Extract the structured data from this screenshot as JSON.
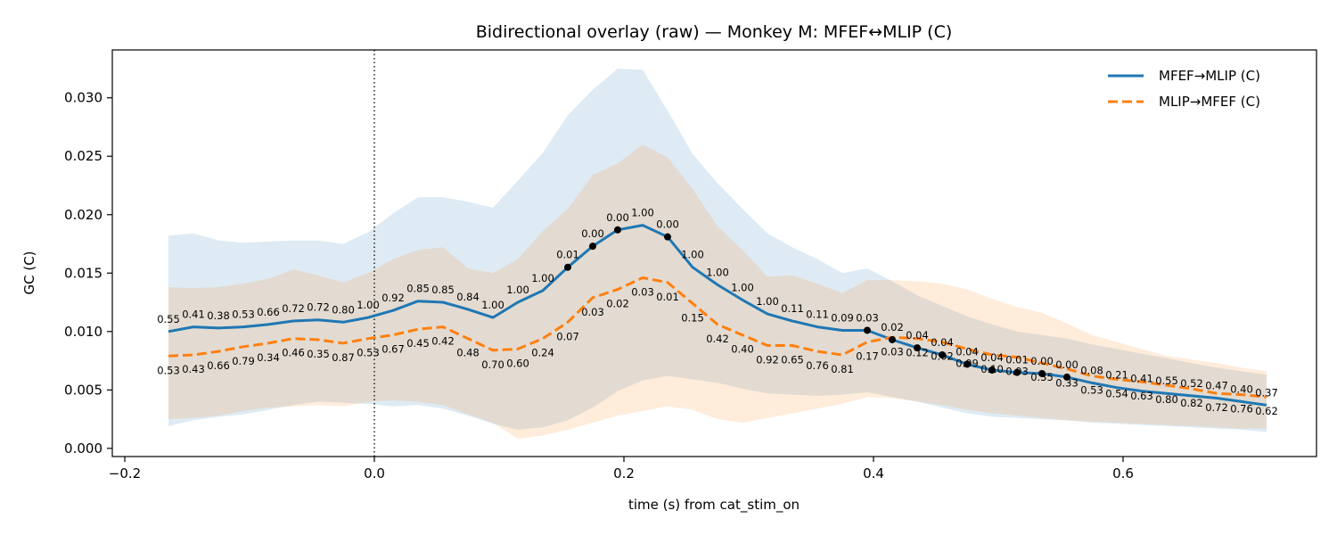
{
  "chart_data": {
    "type": "line",
    "title": "Bidirectional overlay (raw) — Monkey M: MFEF↔MLIP (C)",
    "xlabel": "time (s) from cat_stim_on",
    "ylabel": "GC (C)",
    "xlim": [
      -0.21,
      0.755
    ],
    "ylim": [
      -0.0007,
      0.0341
    ],
    "xticks": [
      -0.2,
      0.0,
      0.2,
      0.4,
      0.6
    ],
    "xtick_labels": [
      "−0.2",
      "0.0",
      "0.2",
      "0.4",
      "0.6"
    ],
    "yticks": [
      0.0,
      0.005,
      0.01,
      0.015,
      0.02,
      0.025,
      0.03
    ],
    "ytick_labels": [
      "0.000",
      "0.005",
      "0.010",
      "0.015",
      "0.020",
      "0.025",
      "0.030"
    ],
    "grid": false,
    "legend_position": "top-right",
    "vline_x": 0.0,
    "x": [
      -0.165,
      -0.145,
      -0.125,
      -0.105,
      -0.085,
      -0.065,
      -0.045,
      -0.025,
      -0.005,
      0.015,
      0.035,
      0.055,
      0.075,
      0.095,
      0.115,
      0.135,
      0.155,
      0.175,
      0.195,
      0.215,
      0.235,
      0.255,
      0.275,
      0.295,
      0.315,
      0.335,
      0.355,
      0.375,
      0.395,
      0.415,
      0.435,
      0.455,
      0.475,
      0.495,
      0.515,
      0.535,
      0.555,
      0.575,
      0.595,
      0.615,
      0.635,
      0.655,
      0.675,
      0.695,
      0.715
    ],
    "series": [
      {
        "name": "MFEF→MLIP (C)",
        "color": "#1f77b4",
        "dash": "solid",
        "values": [
          0.01,
          0.0104,
          0.0103,
          0.0104,
          0.0106,
          0.0109,
          0.011,
          0.0108,
          0.0112,
          0.0118,
          0.0126,
          0.0125,
          0.0119,
          0.0112,
          0.0125,
          0.0135,
          0.0155,
          0.0173,
          0.0187,
          0.0191,
          0.0181,
          0.0155,
          0.014,
          0.0127,
          0.0115,
          0.0109,
          0.0104,
          0.0101,
          0.0101,
          0.0093,
          0.0086,
          0.008,
          0.0072,
          0.0067,
          0.0065,
          0.0064,
          0.0061,
          0.0056,
          0.0052,
          0.0049,
          0.0047,
          0.0045,
          0.0043,
          0.004,
          0.0037
        ],
        "upper": [
          0.0182,
          0.0184,
          0.0178,
          0.0176,
          0.0177,
          0.0178,
          0.0178,
          0.0175,
          0.0185,
          0.0201,
          0.0215,
          0.0215,
          0.0211,
          0.0206,
          0.0229,
          0.0253,
          0.0285,
          0.0307,
          0.0325,
          0.0324,
          0.0289,
          0.0252,
          0.0227,
          0.0205,
          0.0184,
          0.0172,
          0.0162,
          0.015,
          0.0154,
          0.0143,
          0.0131,
          0.0122,
          0.0113,
          0.0106,
          0.01,
          0.0097,
          0.0094,
          0.0089,
          0.0085,
          0.0081,
          0.0077,
          0.0073,
          0.0069,
          0.0066,
          0.0063
        ],
        "lower": [
          0.0019,
          0.0024,
          0.0027,
          0.0029,
          0.0033,
          0.0037,
          0.004,
          0.0039,
          0.0038,
          0.0036,
          0.0037,
          0.0034,
          0.0028,
          0.0021,
          0.0016,
          0.0018,
          0.0024,
          0.0035,
          0.0049,
          0.0058,
          0.0062,
          0.0059,
          0.0056,
          0.0051,
          0.0047,
          0.0046,
          0.0045,
          0.0046,
          0.0048,
          0.0044,
          0.004,
          0.0035,
          0.003,
          0.0027,
          0.0026,
          0.0025,
          0.0024,
          0.0022,
          0.0021,
          0.002,
          0.0019,
          0.0018,
          0.0017,
          0.0016,
          0.0014
        ],
        "labels": [
          "0.55",
          "0.41",
          "0.38",
          "0.53",
          "0.66",
          "0.72",
          "0.72",
          "0.80",
          "1.00",
          "0.92",
          "0.85",
          "0.85",
          "0.84",
          "1.00",
          "1.00",
          "1.00",
          "0.01",
          "0.00",
          "0.00",
          "1.00",
          "0.00",
          "1.00",
          "1.00",
          "1.00",
          "1.00",
          "0.11",
          "0.11",
          "0.09",
          "0.03",
          "0.02",
          "0.04",
          "0.04",
          "0.04",
          "0.04",
          "0.01",
          "0.00",
          "0.00",
          "0.08",
          "0.21",
          "0.41",
          "0.55",
          "0.52",
          "0.47",
          "0.40",
          "0.37"
        ],
        "significant_indices": [
          16,
          17,
          18,
          20,
          28,
          29,
          30,
          31,
          32,
          33,
          34,
          35,
          36
        ]
      },
      {
        "name": "MLIP→MFEF (C)",
        "color": "#ff7f0e",
        "dash": "dashed",
        "values": [
          0.0079,
          0.008,
          0.0083,
          0.0087,
          0.009,
          0.0094,
          0.0093,
          0.009,
          0.0094,
          0.0097,
          0.0102,
          0.0104,
          0.0094,
          0.0084,
          0.0085,
          0.0094,
          0.0108,
          0.0129,
          0.0136,
          0.0146,
          0.0142,
          0.0124,
          0.0106,
          0.0097,
          0.0088,
          0.0088,
          0.0083,
          0.008,
          0.0091,
          0.0095,
          0.0094,
          0.0091,
          0.0085,
          0.008,
          0.0078,
          0.0073,
          0.0068,
          0.0062,
          0.0059,
          0.0057,
          0.0054,
          0.0051,
          0.0047,
          0.0046,
          0.0044
        ],
        "upper": [
          0.0138,
          0.0137,
          0.0138,
          0.0141,
          0.0145,
          0.0153,
          0.0148,
          0.0142,
          0.015,
          0.0162,
          0.017,
          0.0172,
          0.0154,
          0.015,
          0.0162,
          0.0186,
          0.0205,
          0.0234,
          0.0244,
          0.026,
          0.0249,
          0.0222,
          0.019,
          0.017,
          0.0147,
          0.0148,
          0.0141,
          0.0133,
          0.0144,
          0.0144,
          0.0143,
          0.0141,
          0.0136,
          0.0128,
          0.0121,
          0.0116,
          0.0107,
          0.0097,
          0.0091,
          0.0085,
          0.0079,
          0.0076,
          0.0073,
          0.0069,
          0.0066
        ],
        "lower": [
          0.0025,
          0.0026,
          0.0028,
          0.0032,
          0.0035,
          0.0036,
          0.0037,
          0.0036,
          0.004,
          0.0041,
          0.004,
          0.0037,
          0.0029,
          0.0022,
          0.0008,
          0.0011,
          0.0016,
          0.0022,
          0.0028,
          0.0032,
          0.0036,
          0.0033,
          0.0025,
          0.0022,
          0.0026,
          0.003,
          0.0034,
          0.0038,
          0.0044,
          0.0043,
          0.004,
          0.0037,
          0.0033,
          0.003,
          0.0028,
          0.0026,
          0.0024,
          0.0023,
          0.0022,
          0.0021,
          0.002,
          0.0019,
          0.0018,
          0.0017,
          0.0017
        ],
        "labels": [
          "0.53",
          "0.43",
          "0.66",
          "0.79",
          "0.34",
          "0.46",
          "0.35",
          "0.87",
          "0.53",
          "0.67",
          "0.45",
          "0.42",
          "0.48",
          "0.70",
          "0.60",
          "0.24",
          "0.07",
          "0.03",
          "0.02",
          "0.03",
          "0.01",
          "0.15",
          "0.42",
          "0.40",
          "0.92",
          "0.65",
          "0.76",
          "0.81",
          "0.17",
          "0.03",
          "0.12",
          "0.02",
          "0.09",
          "0.10",
          "0.03",
          "0.35",
          "0.33",
          "0.53",
          "0.54",
          "0.63",
          "0.80",
          "0.82",
          "0.72",
          "0.76",
          "0.62"
        ]
      }
    ]
  }
}
